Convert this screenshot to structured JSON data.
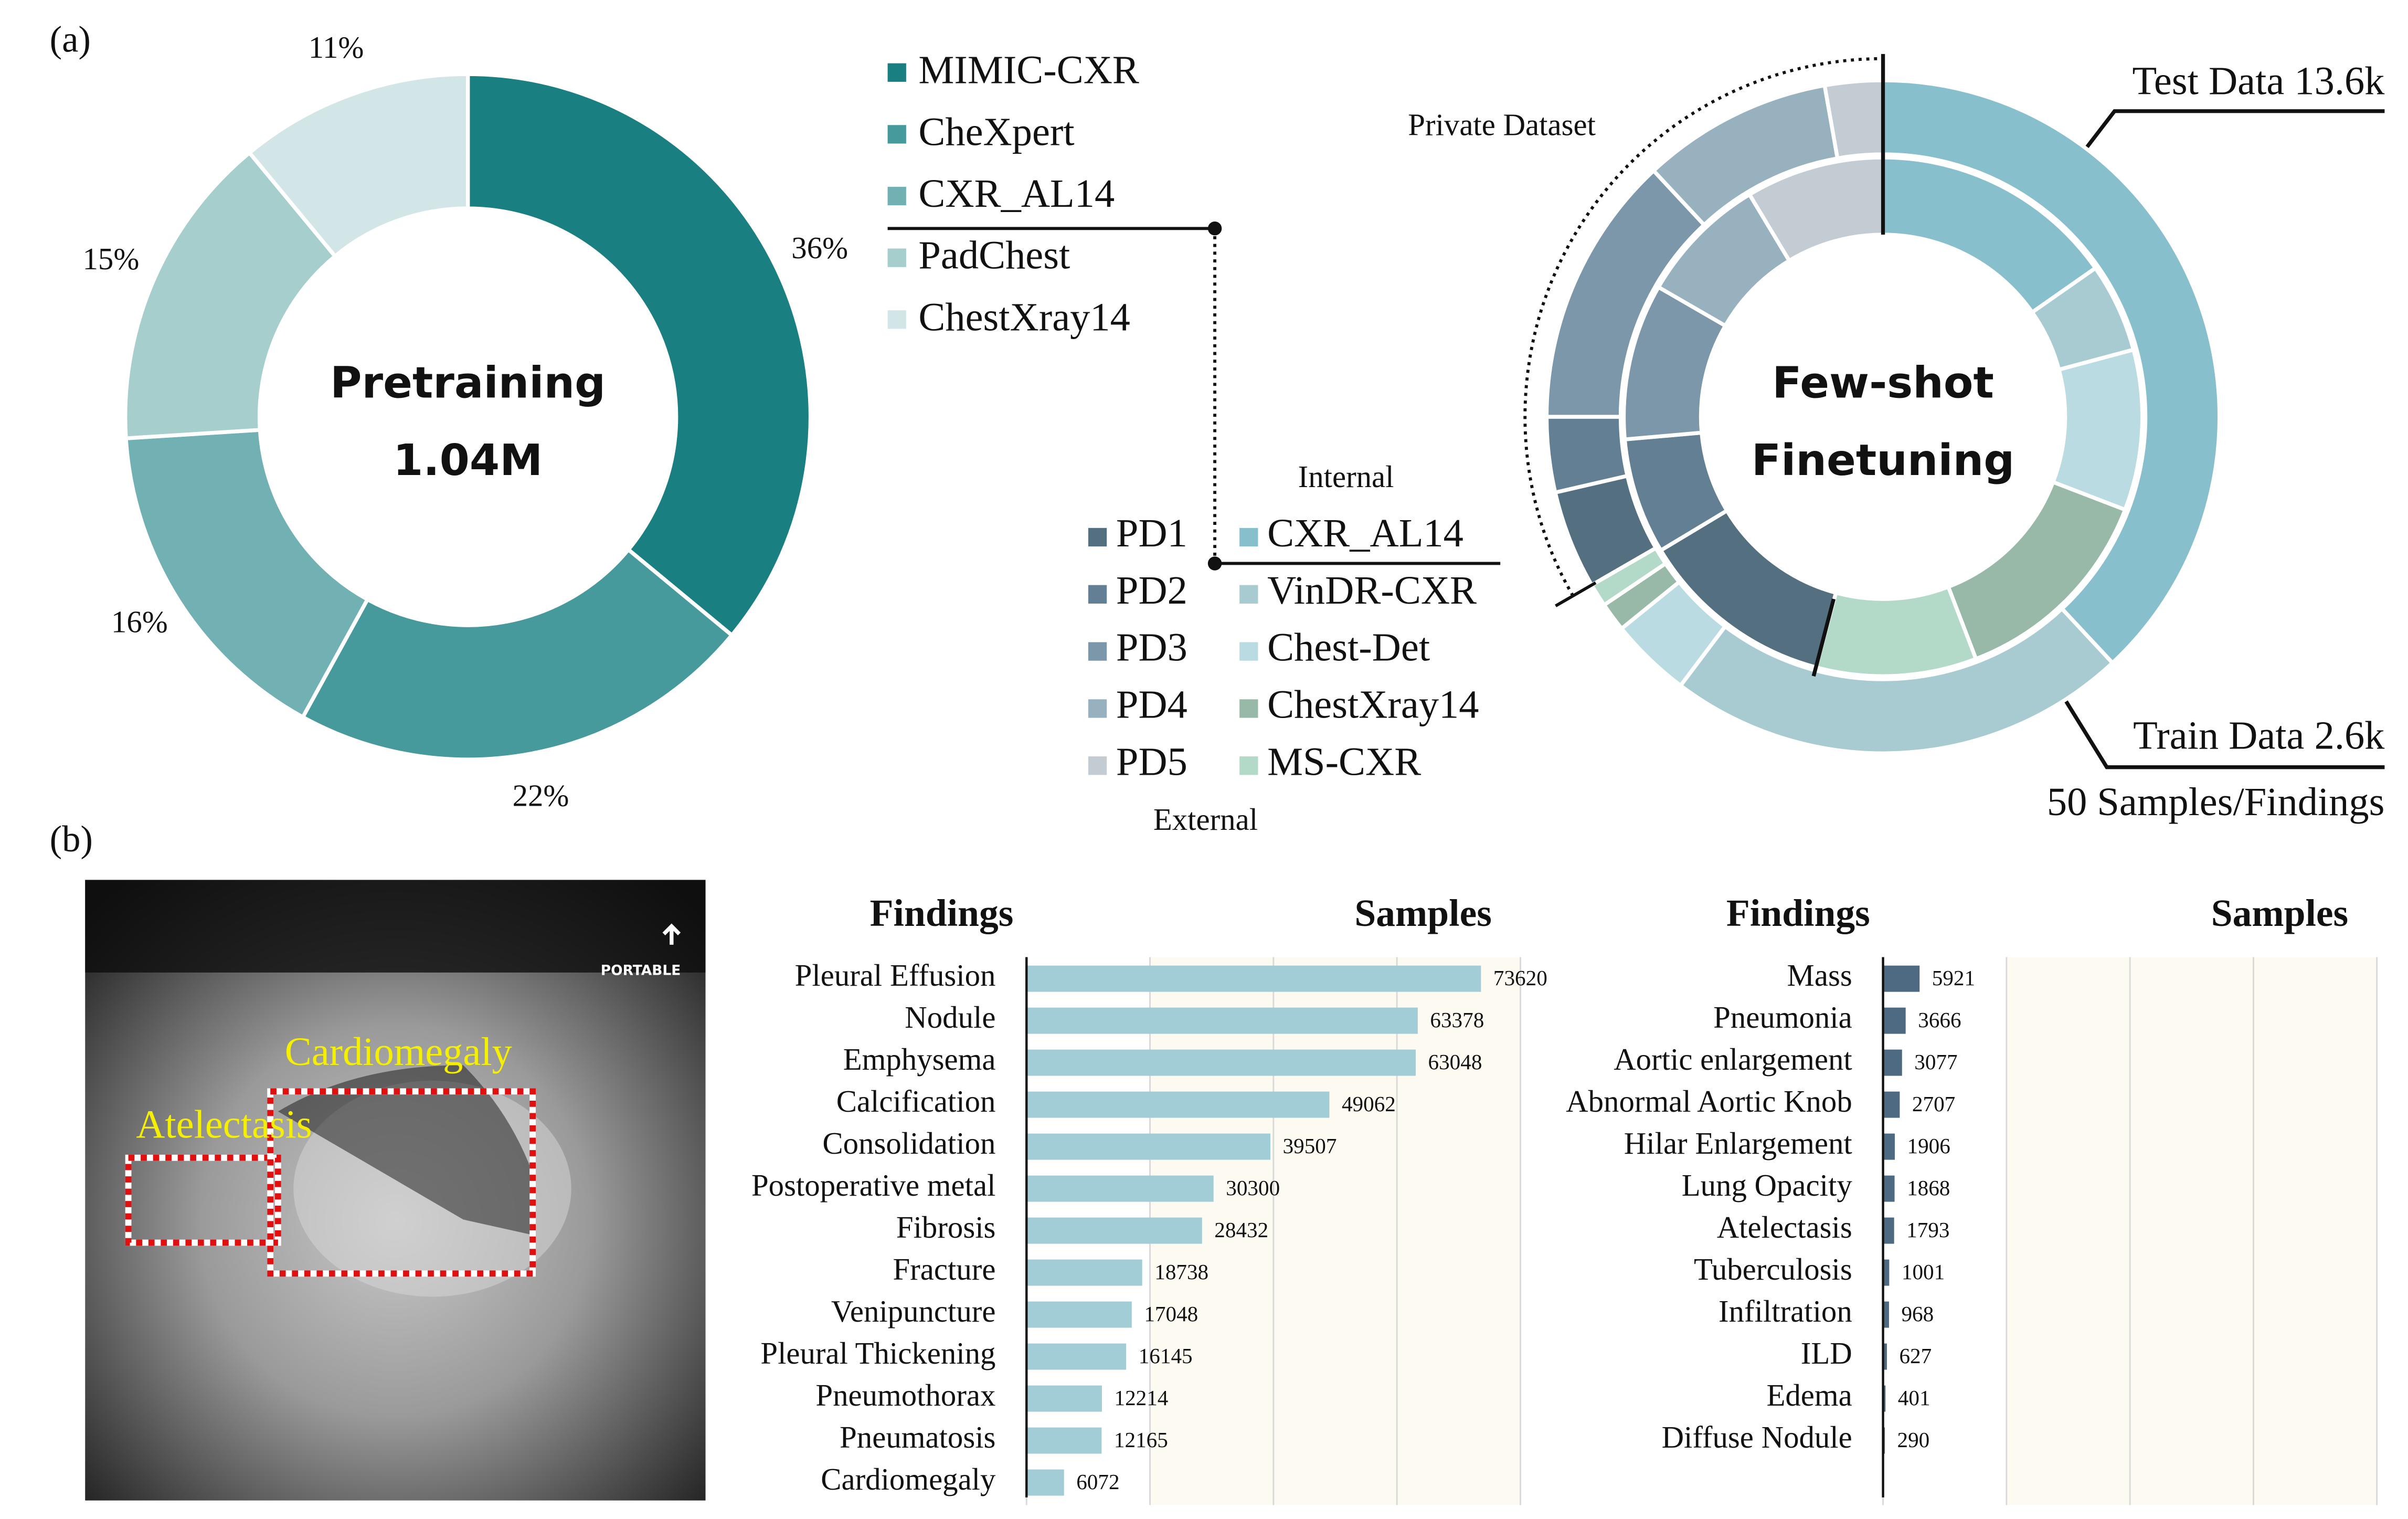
{
  "panel_labels": [
    "(a)",
    "(b)"
  ],
  "image": {
    "labels": [
      "Cardiomegaly",
      "Atelectasis"
    ],
    "watermark": "PORTABLE"
  },
  "chart_data": [
    {
      "type": "pie",
      "center_text": [
        "Pretraining",
        "1.04M"
      ],
      "categories": [
        "MIMIC-CXR",
        "CheXpert",
        "CXR_AL14",
        "PadChest",
        "ChestXray14"
      ],
      "values": [
        36,
        22,
        16,
        15,
        11
      ],
      "value_labels": [
        "36%",
        "22%",
        "16%",
        "15%",
        "11%"
      ],
      "colors": [
        "#1a7f80",
        "#479a9b",
        "#72b1b3",
        "#a5cecc",
        "#d2e6e7"
      ]
    },
    {
      "type": "sunburst",
      "center_text": [
        "Few-shot",
        "Finetuning"
      ],
      "categories": [
        "CXR_AL14",
        "VinDR-CXR",
        "Chest-Det",
        "ChestXray14",
        "MS-CXR",
        "PD1",
        "PD2",
        "PD3",
        "PD4",
        "PD5"
      ],
      "colors": [
        "#88bfcc",
        "#a7cbd0",
        "#b9dbe1",
        "#98b9a8",
        "#b3d9c8",
        "#546f80",
        "#627f93",
        "#7b97a9",
        "#98b1bf",
        "#c3ccd3"
      ],
      "series": [
        {
          "name": "Test Data 13.6k",
          "values": [
            137,
            80,
            14,
            5,
            4,
            17,
            13,
            47,
            33,
            10
          ]
        },
        {
          "name": "Train Data 2.6k",
          "values": [
            55,
            20,
            36,
            48,
            36,
            44,
            26,
            35,
            29,
            31
          ]
        }
      ],
      "internal_label": "Internal",
      "external_label": "External",
      "private_label": "Private Dataset",
      "annotation": "50 Samples/Findings"
    },
    {
      "type": "bar",
      "orientation": "horizontal",
      "category_header": "Findings",
      "value_header": "Samples",
      "categories": [
        "Pleural Effusion",
        "Nodule",
        "Emphysema",
        "Calcification",
        "Consolidation",
        "Postoperative metal",
        "Fibrosis",
        "Fracture",
        "Venipuncture",
        "Pleural Thickening",
        "Pneumothorax",
        "Pneumatosis",
        "Cardiomegaly"
      ],
      "values": [
        73620,
        63378,
        63048,
        49062,
        39507,
        30300,
        28432,
        18738,
        17048,
        16145,
        12214,
        12165,
        6072
      ],
      "color": "#a3cdd6",
      "xlim": [
        0,
        80000
      ],
      "xticks": [
        0,
        20000,
        40000,
        60000,
        80000
      ],
      "grid": true
    },
    {
      "type": "bar",
      "orientation": "horizontal",
      "category_header": "Findings",
      "value_header": "Samples",
      "categories": [
        "Mass",
        "Pneumonia",
        "Aortic enlargement",
        "Abnormal Aortic Knob",
        "Hilar Enlargement",
        "Lung Opacity",
        "Atelectasis",
        "Tuberculosis",
        "Infiltration",
        "ILD",
        "Edema",
        "Diffuse Nodule"
      ],
      "values": [
        5921,
        3666,
        3077,
        2707,
        1906,
        1868,
        1793,
        1001,
        968,
        627,
        401,
        290
      ],
      "color": "#4d6a82",
      "xlim": [
        0,
        80000
      ],
      "xticks": [
        0,
        20000,
        40000,
        60000,
        80000
      ],
      "grid": true
    }
  ]
}
